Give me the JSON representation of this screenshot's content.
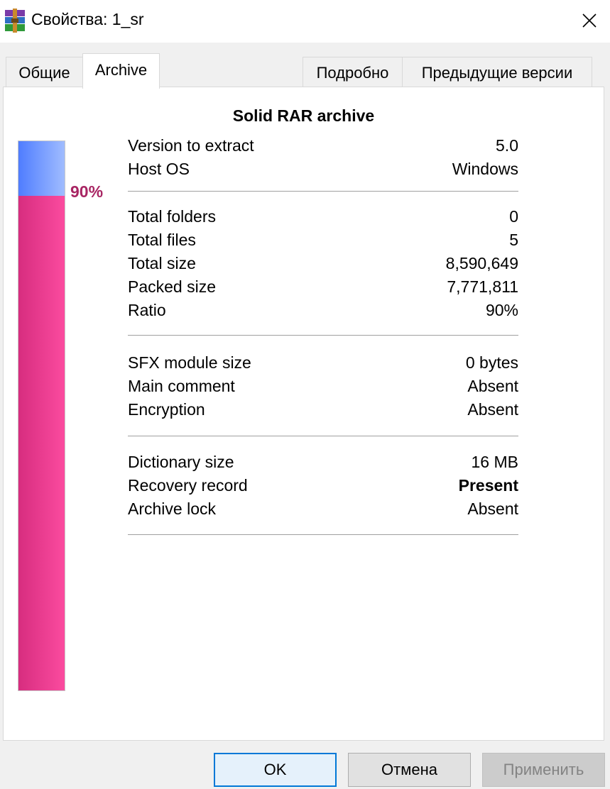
{
  "window": {
    "title": "Свойства: 1_sr",
    "app_icon": "winrar-archive-icon",
    "close_icon": "close-icon"
  },
  "tabs": [
    {
      "label": "Общие"
    },
    {
      "label": "Archive",
      "active": true
    },
    {
      "label": "Подробно"
    },
    {
      "label": "Предыдущие версии"
    }
  ],
  "archive": {
    "heading": "Solid RAR archive",
    "ratio_label": "90%",
    "ratio_fraction": 0.9,
    "colors": {
      "packed": "#e83a8f",
      "saved": "#6b93ff",
      "ratio_text": "#a82563"
    },
    "groups": [
      [
        {
          "label": "Version to extract",
          "value": "5.0"
        },
        {
          "label": "Host OS",
          "value": "Windows"
        }
      ],
      [
        {
          "label": "Total folders",
          "value": "0"
        },
        {
          "label": "Total files",
          "value": "5"
        },
        {
          "label": "Total size",
          "value": "8,590,649"
        },
        {
          "label": "Packed size",
          "value": "7,771,811"
        },
        {
          "label": "Ratio",
          "value": "90%"
        }
      ],
      [
        {
          "label": "SFX module size",
          "value": "0 bytes"
        },
        {
          "label": "Main comment",
          "value": "Absent"
        },
        {
          "label": "Encryption",
          "value": "Absent"
        }
      ],
      [
        {
          "label": "Dictionary size",
          "value": "16 MB"
        },
        {
          "label": "Recovery record",
          "value": "Present",
          "bold": true
        },
        {
          "label": "Archive lock",
          "value": "Absent"
        }
      ]
    ]
  },
  "buttons": {
    "ok": "OK",
    "cancel": "Отмена",
    "apply": "Применить"
  }
}
